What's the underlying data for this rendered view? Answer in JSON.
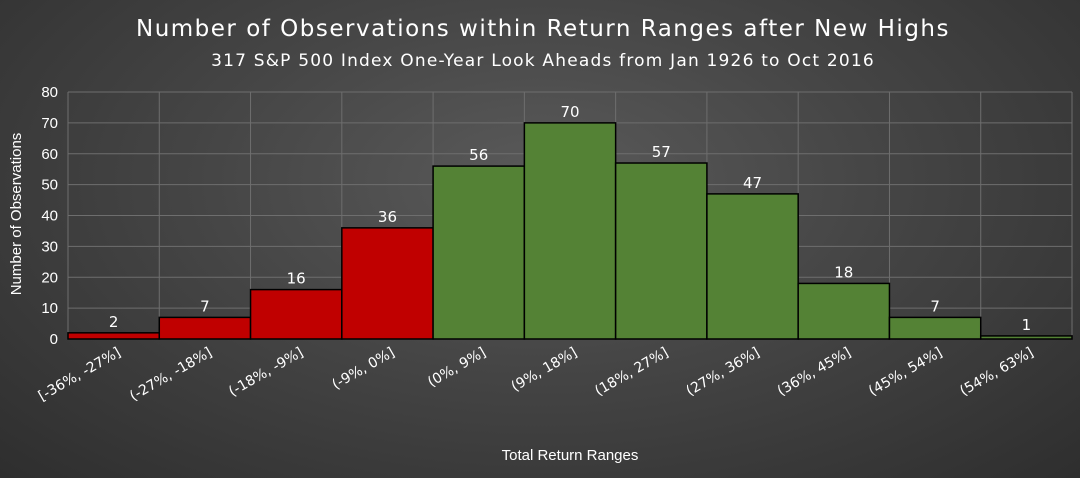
{
  "chart_data": {
    "type": "bar",
    "title": "Number of Observations within Return Ranges after New Highs",
    "subtitle": "317 S&P 500 Index One-Year Look Aheads from Jan 1926 to Oct 2016",
    "xlabel": "Total Return Ranges",
    "ylabel": "Number of Observations",
    "ylim": [
      0,
      80
    ],
    "yticks": [
      "0",
      "10",
      "20",
      "30",
      "40",
      "50",
      "60",
      "70",
      "80"
    ],
    "grid": true,
    "categories": [
      "[-36%, -27%]",
      "(-27%, -18%]",
      "(-18%, -9%]",
      "(-9%, 0%]",
      "(0%, 9%]",
      "(9%, 18%]",
      "(18%, 27%]",
      "(27%, 36%]",
      "(36%, 45%]",
      "(45%, 54%]",
      "(54%, 63%]"
    ],
    "values": [
      2,
      7,
      16,
      36,
      56,
      70,
      57,
      47,
      18,
      7,
      1
    ],
    "data_labels": [
      "2",
      "7",
      "16",
      "36",
      "56",
      "70",
      "57",
      "47",
      "18",
      "7",
      "1"
    ],
    "colors": {
      "negative": "#c00000",
      "positive": "#548235",
      "bar_edge": "#000000",
      "grid": "#6e6e6e",
      "text": "#ffffff"
    }
  }
}
